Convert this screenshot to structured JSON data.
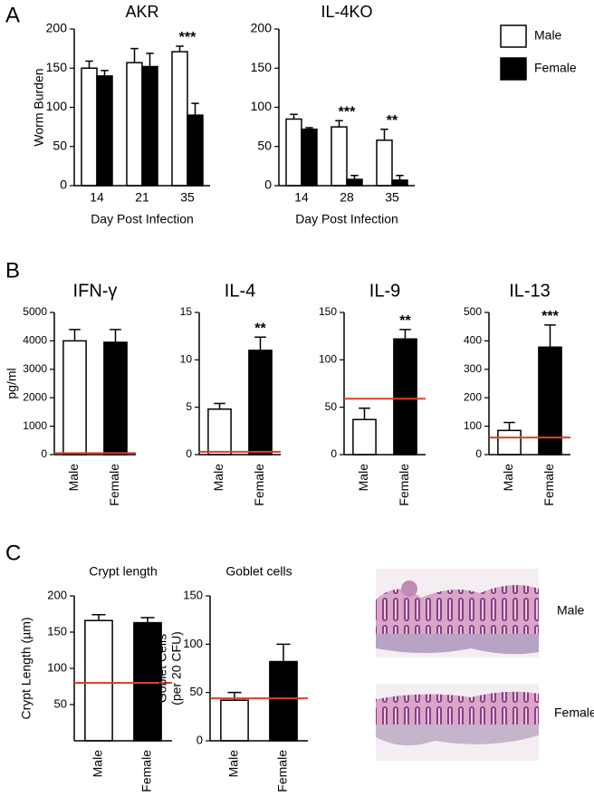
{
  "panel_labels": [
    "A",
    "B",
    "C"
  ],
  "chart_data": [
    {
      "type": "bar",
      "title": "AKR",
      "ylabel": "Worm Burden",
      "xlabel": "Day Post Infection",
      "categories": [
        "14",
        "21",
        "35"
      ],
      "series": [
        {
          "color": "#ffffff",
          "values": [
            150,
            157,
            171
          ],
          "errors": [
            9,
            18,
            7
          ]
        },
        {
          "color": "#000000",
          "values": [
            140,
            152,
            90
          ],
          "errors": [
            7,
            17,
            15
          ]
        }
      ],
      "annotations": [
        null,
        null,
        "***"
      ],
      "ylim": [
        0,
        200
      ],
      "yticks": [
        0,
        50,
        100,
        150,
        200
      ]
    },
    {
      "type": "bar",
      "title": "IL-4KO",
      "xlabel": "Day Post Infection",
      "legend": "right",
      "categories": [
        "14",
        "28",
        "35"
      ],
      "series": [
        {
          "name": "Male",
          "color": "#ffffff",
          "values": [
            85,
            75,
            58
          ],
          "errors": [
            6,
            8,
            14
          ]
        },
        {
          "name": "Female",
          "color": "#000000",
          "values": [
            72,
            8,
            7
          ],
          "errors": [
            2,
            5,
            6
          ]
        }
      ],
      "annotations": [
        null,
        "***",
        "**"
      ],
      "ylim": [
        0,
        200
      ],
      "yticks": [
        0,
        50,
        100,
        150,
        200
      ]
    },
    {
      "type": "bar",
      "title": "IFN-γ",
      "ylabel": "pg/ml",
      "categories": [
        "Male",
        "Female"
      ],
      "colors": [
        "#ffffff",
        "#000000"
      ],
      "values": [
        4000,
        3950
      ],
      "errors": [
        400,
        450
      ],
      "reference_line": 50,
      "reference_color": "#d9412b",
      "xtick_rotation": -90,
      "ylim": [
        0,
        5000
      ],
      "yticks": [
        0,
        1000,
        2000,
        3000,
        4000,
        5000
      ]
    },
    {
      "type": "bar",
      "title": "IL-4",
      "categories": [
        "Male",
        "Female"
      ],
      "colors": [
        "#ffffff",
        "#000000"
      ],
      "values": [
        4.8,
        11
      ],
      "errors": [
        0.6,
        1.4
      ],
      "annotations": [
        null,
        "**"
      ],
      "reference_line": 0.3,
      "reference_color": "#d9412b",
      "xtick_rotation": -90,
      "ylim": [
        0,
        15
      ],
      "yticks": [
        0,
        5,
        10,
        15
      ]
    },
    {
      "type": "bar",
      "title": "IL-9",
      "categories": [
        "Male",
        "Female"
      ],
      "colors": [
        "#ffffff",
        "#000000"
      ],
      "values": [
        37,
        122
      ],
      "errors": [
        12,
        10
      ],
      "annotations": [
        null,
        "**"
      ],
      "reference_line": 59,
      "reference_color": "#d9412b",
      "xtick_rotation": -90,
      "ylim": [
        0,
        150
      ],
      "yticks": [
        0,
        50,
        100,
        150
      ]
    },
    {
      "type": "bar",
      "title": "IL-13",
      "categories": [
        "Male",
        "Female"
      ],
      "colors": [
        "#ffffff",
        "#000000"
      ],
      "values": [
        85,
        378
      ],
      "errors": [
        28,
        78
      ],
      "annotations": [
        null,
        "***"
      ],
      "reference_line": 60,
      "reference_color": "#d9412b",
      "xtick_rotation": -90,
      "ylim": [
        0,
        500
      ],
      "yticks": [
        0,
        100,
        200,
        300,
        400,
        500
      ]
    },
    {
      "type": "bar",
      "title": "Crypt length",
      "ylabel": "Crypt Length (µm)",
      "categories": [
        "Male",
        "Female"
      ],
      "colors": [
        "#ffffff",
        "#000000"
      ],
      "values": [
        166,
        163
      ],
      "errors": [
        8,
        7
      ],
      "reference_line": 80,
      "reference_color": "#d9412b",
      "xtick_rotation": -90,
      "ylim": [
        0,
        200
      ],
      "yticks": [
        50,
        100,
        150,
        200
      ]
    },
    {
      "type": "bar",
      "title": "Goblet cells",
      "ylabel": [
        "Goblet Cells",
        "(per 20 CFU)"
      ],
      "categories": [
        "Male",
        "Female"
      ],
      "colors": [
        "#ffffff",
        "#000000"
      ],
      "values": [
        42,
        82
      ],
      "errors": [
        8,
        18
      ],
      "reference_line": 44,
      "reference_color": "#d9412b",
      "xtick_rotation": -90,
      "ylim": [
        0,
        150
      ],
      "yticks": [
        0,
        50,
        100,
        150
      ]
    }
  ],
  "images": [
    {
      "label": "Male"
    },
    {
      "label": "Female"
    }
  ]
}
